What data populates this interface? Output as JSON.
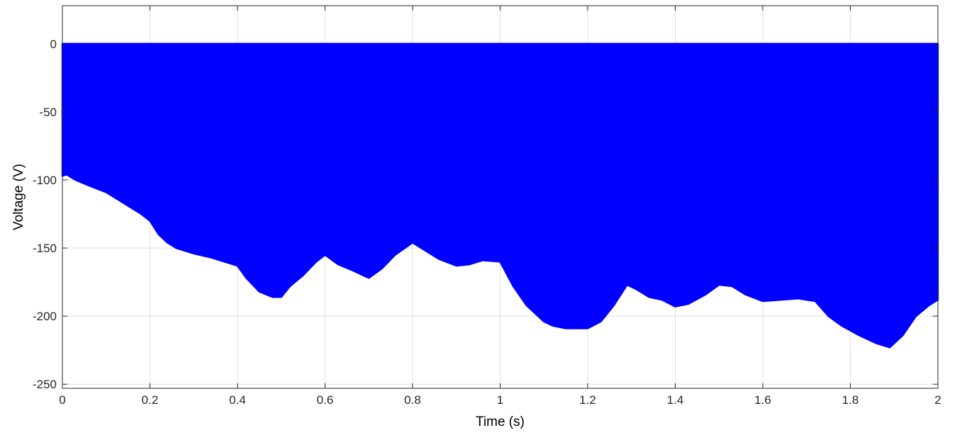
{
  "chart_data": {
    "type": "area",
    "title": "",
    "xlabel": "Time (s)",
    "ylabel": "Voltage (V)",
    "xlim": [
      0,
      2
    ],
    "ylim": [
      -253,
      28
    ],
    "grid": true,
    "legend": "none",
    "x_ticks": [
      0,
      0.2,
      0.4,
      0.6,
      0.8,
      1,
      1.2,
      1.4,
      1.6,
      1.8,
      2
    ],
    "x_tick_labels": [
      "0",
      "0.2",
      "0.4",
      "0.6",
      "0.8",
      "1",
      "1.2",
      "1.4",
      "1.6",
      "1.8",
      "2"
    ],
    "y_ticks": [
      0,
      -50,
      -100,
      -150,
      -200,
      -250
    ],
    "y_tick_labels": [
      "0",
      "-50",
      "-100",
      "-150",
      "-200",
      "-250"
    ],
    "series": [
      {
        "color": "#0000ff",
        "upper": 0,
        "envelope_x": [
          0,
          0.01,
          0.03,
          0.06,
          0.1,
          0.14,
          0.18,
          0.2,
          0.22,
          0.24,
          0.26,
          0.28,
          0.3,
          0.34,
          0.38,
          0.4,
          0.42,
          0.45,
          0.48,
          0.5,
          0.52,
          0.55,
          0.58,
          0.6,
          0.63,
          0.66,
          0.7,
          0.73,
          0.76,
          0.8,
          0.83,
          0.86,
          0.9,
          0.93,
          0.96,
          1.0,
          1.03,
          1.06,
          1.1,
          1.12,
          1.15,
          1.2,
          1.23,
          1.26,
          1.29,
          1.31,
          1.34,
          1.37,
          1.4,
          1.43,
          1.47,
          1.5,
          1.53,
          1.56,
          1.6,
          1.64,
          1.68,
          1.72,
          1.75,
          1.78,
          1.82,
          1.86,
          1.89,
          1.92,
          1.95,
          1.98,
          2.0
        ],
        "envelope_y": [
          -97,
          -96,
          -100,
          -104,
          -109,
          -117,
          -125,
          -130,
          -140,
          -146,
          -150,
          -152,
          -154,
          -157,
          -161,
          -163,
          -172,
          -182,
          -186,
          -186,
          -178,
          -170,
          -160,
          -155,
          -162,
          -166,
          -172,
          -165,
          -155,
          -146,
          -152,
          -158,
          -163,
          -162,
          -159,
          -160,
          -178,
          -192,
          -204,
          -207,
          -209,
          -209,
          -204,
          -192,
          -177,
          -180,
          -186,
          -188,
          -193,
          -191,
          -184,
          -177,
          -178,
          -184,
          -189,
          -188,
          -187,
          -189,
          -200,
          -207,
          -214,
          -220,
          -223,
          -214,
          -200,
          -192,
          -188
        ]
      }
    ]
  }
}
